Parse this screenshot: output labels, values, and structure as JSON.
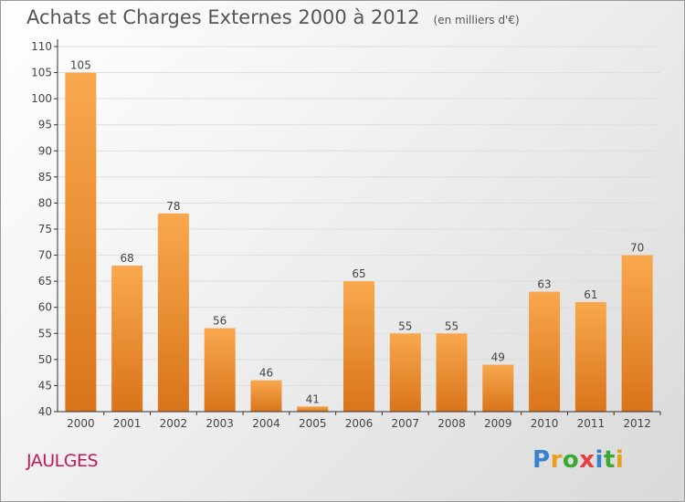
{
  "title": "Achats et Charges Externes 2000 à 2012",
  "unit": "(en milliers d'€)",
  "commune": "JAULGES",
  "logo": {
    "letters": [
      {
        "ch": "P",
        "color": "#3a7fd0"
      },
      {
        "ch": "r",
        "color": "#e8a020"
      },
      {
        "ch": "o",
        "color": "#3aaa35"
      },
      {
        "ch": "x",
        "color": "#e83e3e"
      },
      {
        "ch": "i",
        "color": "#3a7fd0"
      },
      {
        "ch": "t",
        "color": "#3aaa35"
      },
      {
        "ch": "i",
        "color": "#e8a020"
      }
    ]
  },
  "colors": {
    "bar_light": "#f9a84e",
    "bar_dark": "#d9741a",
    "axis": "#333333",
    "grid": "#dddddd"
  },
  "chart_data": {
    "type": "bar",
    "title": "Achats et Charges Externes 2000 à 2012",
    "subtitle": "(en milliers d'€)",
    "categories": [
      "2000",
      "2001",
      "2002",
      "2003",
      "2004",
      "2005",
      "2006",
      "2007",
      "2008",
      "2009",
      "2010",
      "2011",
      "2012"
    ],
    "values": [
      105,
      68,
      78,
      56,
      46,
      41,
      65,
      55,
      55,
      49,
      63,
      61,
      70
    ],
    "ylim": [
      40,
      110
    ],
    "yticks": [
      40,
      45,
      50,
      55,
      60,
      65,
      70,
      75,
      80,
      85,
      90,
      95,
      100,
      105,
      110
    ],
    "grid": true,
    "xlabel": "",
    "ylabel": ""
  }
}
